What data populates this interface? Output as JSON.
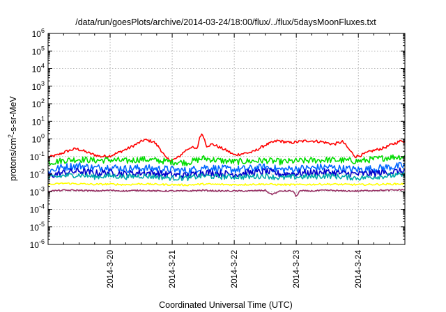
{
  "chart_data": {
    "type": "line",
    "title": "/data/run/goesPlots/archive/2014-03-24/18:00/flux/../flux/5daysMoonFluxes.txt",
    "xlabel": "Coordinated Universal Time (UTC)",
    "ylabel": {
      "prefix": "protons/cm",
      "superscript": "2",
      "suffix": "-s-sr-MeV"
    },
    "x_range_days": [
      0,
      5.75
    ],
    "x_ticks": [
      {
        "label": "2014-3-20",
        "day": 1.0
      },
      {
        "label": "2014-3-21",
        "day": 2.0
      },
      {
        "label": "2014-3-22",
        "day": 3.0
      },
      {
        "label": "2014-3-23",
        "day": 4.0
      },
      {
        "label": "2014-3-24",
        "day": 5.0
      }
    ],
    "y_scale": "log",
    "ylim": [
      1e-06,
      1000000.0
    ],
    "y_ticks": [
      {
        "base": "10",
        "exp": "-6",
        "value": 1e-06
      },
      {
        "base": "10",
        "exp": "-5",
        "value": 1e-05
      },
      {
        "base": "10",
        "exp": "-4",
        "value": 0.0001
      },
      {
        "base": "10",
        "exp": "-3",
        "value": 0.001
      },
      {
        "base": "10",
        "exp": "-2",
        "value": 0.01
      },
      {
        "base": "10",
        "exp": "-1",
        "value": 0.1
      },
      {
        "base": "10",
        "exp": "0",
        "value": 1
      },
      {
        "base": "10",
        "exp": "1",
        "value": 10
      },
      {
        "base": "10",
        "exp": "2",
        "value": 100
      },
      {
        "base": "10",
        "exp": "3",
        "value": 1000
      },
      {
        "base": "10",
        "exp": "4",
        "value": 10000
      },
      {
        "base": "10",
        "exp": "5",
        "value": 100000
      },
      {
        "base": "10",
        "exp": "6",
        "value": 1000000
      }
    ],
    "grid": true,
    "series": [
      {
        "color": "#ff0000",
        "x": [
          0,
          0.15,
          0.3,
          0.45,
          0.55,
          0.7,
          0.85,
          1.0,
          1.1,
          1.3,
          1.5,
          1.55,
          1.62,
          1.7,
          1.8,
          1.9,
          2.0,
          2.1,
          2.2,
          2.3,
          2.4,
          2.45,
          2.5,
          2.55,
          2.65,
          2.75,
          2.9,
          3.0,
          3.15,
          3.3,
          3.5,
          3.7,
          3.9,
          4.05,
          4.2,
          4.4,
          4.6,
          4.75,
          4.85,
          4.95,
          5.05,
          5.2,
          5.4,
          5.55,
          5.7,
          5.75
        ],
        "y": [
          0.09,
          0.12,
          0.2,
          0.28,
          0.22,
          0.14,
          0.1,
          0.11,
          0.15,
          0.3,
          0.7,
          0.9,
          0.8,
          0.7,
          0.3,
          0.08,
          0.06,
          0.09,
          0.2,
          0.35,
          0.25,
          1.6,
          1.7,
          0.4,
          0.5,
          0.35,
          0.2,
          0.12,
          0.15,
          0.18,
          0.45,
          0.8,
          0.6,
          0.7,
          0.8,
          0.7,
          0.5,
          0.7,
          0.25,
          0.1,
          0.12,
          0.2,
          0.3,
          0.5,
          0.8,
          0.75
        ]
      },
      {
        "color": "#00dd00",
        "x": [
          0,
          0.25,
          0.5,
          0.75,
          1.0,
          1.25,
          1.5,
          1.75,
          2.0,
          2.25,
          2.5,
          2.75,
          3.0,
          3.25,
          3.5,
          3.75,
          4.0,
          4.25,
          4.5,
          4.75,
          5.0,
          5.25,
          5.5,
          5.75
        ],
        "y": [
          0.045,
          0.06,
          0.07,
          0.06,
          0.065,
          0.055,
          0.07,
          0.06,
          0.05,
          0.045,
          0.08,
          0.06,
          0.05,
          0.055,
          0.06,
          0.05,
          0.055,
          0.06,
          0.065,
          0.06,
          0.055,
          0.07,
          0.09,
          0.1
        ]
      },
      {
        "color": "#0066ff",
        "x": [
          0,
          0.25,
          0.5,
          0.75,
          1.0,
          1.25,
          1.5,
          1.75,
          2.0,
          2.25,
          2.5,
          2.75,
          3.0,
          3.25,
          3.5,
          3.75,
          4.0,
          4.25,
          4.5,
          4.75,
          5.0,
          5.25,
          5.5,
          5.75
        ],
        "y": [
          0.015,
          0.025,
          0.03,
          0.022,
          0.025,
          0.02,
          0.022,
          0.02,
          0.018,
          0.015,
          0.025,
          0.02,
          0.018,
          0.02,
          0.025,
          0.018,
          0.02,
          0.022,
          0.025,
          0.02,
          0.018,
          0.02,
          0.025,
          0.03
        ]
      },
      {
        "color": "#0000cc",
        "x": [
          0,
          0.25,
          0.5,
          0.75,
          1.0,
          1.25,
          1.5,
          1.75,
          2.0,
          2.25,
          2.5,
          2.75,
          3.0,
          3.25,
          3.5,
          3.75,
          4.0,
          4.25,
          4.5,
          4.75,
          5.0,
          5.25,
          5.5,
          5.75
        ],
        "y": [
          0.008,
          0.012,
          0.015,
          0.011,
          0.013,
          0.01,
          0.012,
          0.011,
          0.009,
          0.008,
          0.013,
          0.011,
          0.01,
          0.012,
          0.014,
          0.01,
          0.011,
          0.012,
          0.013,
          0.011,
          0.01,
          0.011,
          0.013,
          0.015
        ]
      },
      {
        "color": "#00aaaa",
        "x": [
          0,
          0.25,
          0.5,
          0.75,
          1.0,
          1.25,
          1.5,
          1.75,
          2.0,
          2.25,
          2.5,
          2.75,
          3.0,
          3.25,
          3.5,
          3.75,
          4.0,
          4.25,
          4.5,
          4.75,
          5.0,
          5.25,
          5.5,
          5.75
        ],
        "y": [
          0.006,
          0.008,
          0.009,
          0.007,
          0.008,
          0.007,
          0.008,
          0.007,
          0.006,
          0.006,
          0.008,
          0.007,
          0.007,
          0.007,
          0.008,
          0.006,
          0.007,
          0.007,
          0.008,
          0.007,
          0.006,
          0.007,
          0.008,
          0.009
        ]
      },
      {
        "color": "#ffff00",
        "x": [
          0,
          0.25,
          0.5,
          0.75,
          1.0,
          1.25,
          1.5,
          1.75,
          2.0,
          2.25,
          2.5,
          2.75,
          3.0,
          3.25,
          3.5,
          3.75,
          4.0,
          4.25,
          4.5,
          4.75,
          5.0,
          5.25,
          5.5,
          5.75
        ],
        "y": [
          0.0025,
          0.003,
          0.0028,
          0.0026,
          0.0027,
          0.0025,
          0.0028,
          0.0026,
          0.0025,
          0.0024,
          0.0027,
          0.0026,
          0.0025,
          0.0026,
          0.0027,
          0.0025,
          0.0025,
          0.0026,
          0.0027,
          0.0026,
          0.0025,
          0.0026,
          0.0027,
          0.0028
        ]
      },
      {
        "color": "#993366",
        "x": [
          0,
          0.25,
          0.5,
          0.75,
          1.0,
          1.25,
          1.5,
          1.75,
          2.0,
          2.25,
          2.5,
          2.75,
          3.0,
          3.25,
          3.5,
          3.6,
          3.75,
          3.95,
          4.0,
          4.05,
          4.25,
          4.5,
          4.75,
          5.0,
          5.25,
          5.5,
          5.75
        ],
        "y": [
          0.0011,
          0.0012,
          0.0012,
          0.0011,
          0.0012,
          0.0011,
          0.0012,
          0.0011,
          0.0011,
          0.0011,
          0.0012,
          0.0011,
          0.0011,
          0.0011,
          0.0012,
          0.0007,
          0.0011,
          0.0011,
          0.0005,
          0.0011,
          0.0011,
          0.0012,
          0.0011,
          0.0011,
          0.0012,
          0.0012,
          0.0013
        ]
      }
    ]
  }
}
